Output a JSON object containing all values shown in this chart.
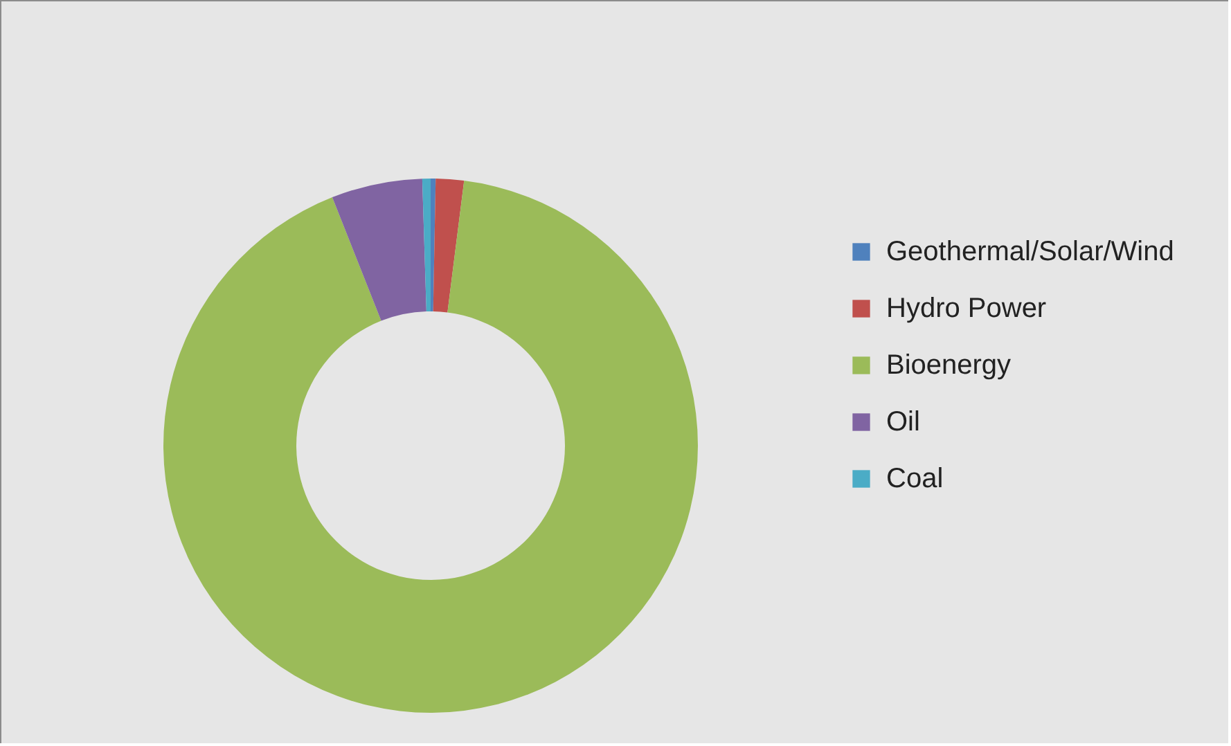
{
  "chart_data": {
    "type": "donut",
    "categories": [
      "Geothermal/Solar/Wind",
      "Hydro Power",
      "Bioenergy",
      "Oil",
      "Coal"
    ],
    "values": [
      0.3,
      1.7,
      92.0,
      5.5,
      0.5
    ],
    "colors": [
      "#4f81bd",
      "#c0504d",
      "#9bbb59",
      "#8064a2",
      "#4bacc6"
    ],
    "legend": "right"
  }
}
